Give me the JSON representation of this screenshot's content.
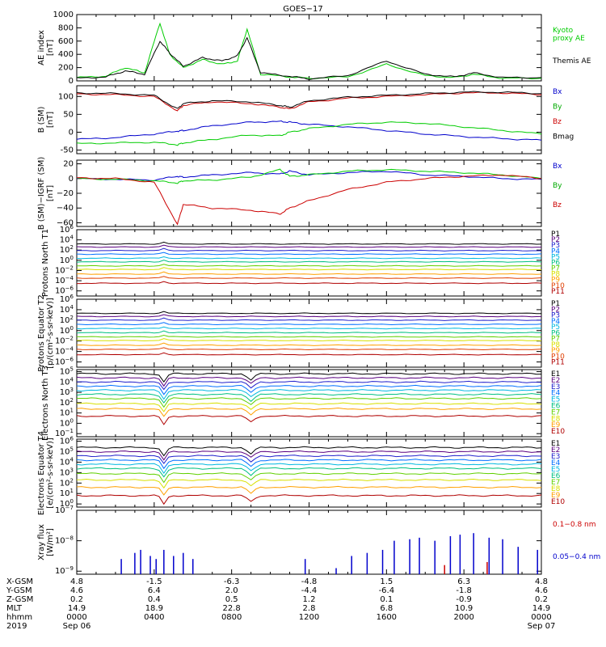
{
  "title": "GOES−17",
  "x_labels": [
    "0000",
    "0400",
    "0800",
    "1200",
    "1600",
    "2000",
    "0000"
  ],
  "date_labels": {
    "year": "2019",
    "start": "Sep 06",
    "end": "Sep 07"
  },
  "ephemeris": {
    "rows": [
      {
        "name": "X-GSM",
        "values": [
          "4.8",
          "-1.5",
          "-6.3",
          "-4.8",
          "1.5",
          "6.3",
          "4.8"
        ]
      },
      {
        "name": "Y-GSM",
        "values": [
          "4.6",
          "6.4",
          "2.0",
          "-4.4",
          "-6.4",
          "-1.8",
          "4.6"
        ]
      },
      {
        "name": "Z-GSM",
        "values": [
          "0.2",
          "0.4",
          "0.5",
          "1.2",
          "0.1",
          "-0.9",
          "0.2"
        ]
      },
      {
        "name": "MLT",
        "values": [
          "14.9",
          "18.9",
          "22.8",
          "2.8",
          "6.8",
          "10.9",
          "14.9"
        ]
      },
      {
        "name": "hhmm",
        "values": [
          "0000",
          "0400",
          "0800",
          "1200",
          "1600",
          "2000",
          "0000"
        ]
      }
    ]
  },
  "chart_data": [
    {
      "type": "line",
      "ylabel": "AE index [nT]",
      "yticks": [
        "1000",
        "800",
        "600",
        "400",
        "200",
        "0"
      ],
      "ylim": [
        0,
        1000
      ],
      "x": [
        0,
        1.5,
        2.5,
        3.5,
        4.3,
        4.8,
        5.5,
        6.5,
        7.5,
        8.3,
        8.8,
        9.5,
        11,
        12,
        14,
        16,
        18,
        19.5,
        20.5,
        22,
        24
      ],
      "series": [
        {
          "name": "Kyoto proxy AE",
          "color": "#00cc00",
          "values": [
            50,
            70,
            200,
            120,
            870,
            400,
            200,
            320,
            250,
            300,
            780,
            100,
            60,
            40,
            60,
            250,
            80,
            50,
            100,
            40,
            40
          ]
        },
        {
          "name": "Themis AE",
          "color": "#000000",
          "values": [
            40,
            60,
            150,
            100,
            600,
            420,
            220,
            350,
            300,
            380,
            650,
            120,
            70,
            30,
            80,
            300,
            100,
            60,
            120,
            50,
            50
          ]
        }
      ],
      "legend": [
        {
          "text": "Kyoto",
          "color": "#00cc00"
        },
        {
          "text": "proxy AE",
          "color": "#00cc00"
        },
        {
          "text": "Themis AE",
          "color": "#000000"
        }
      ]
    },
    {
      "type": "line",
      "ylabel": "B (SM) [nT]",
      "yticks": [
        "100",
        "50",
        "0",
        "-50"
      ],
      "ylim": [
        -60,
        130
      ],
      "x": [
        0,
        2,
        4,
        5.2,
        5.5,
        7,
        9,
        10.5,
        11,
        12,
        14,
        16,
        18,
        20,
        22,
        24
      ],
      "series": [
        {
          "name": "Bx",
          "color": "#0000cc",
          "values": [
            -20,
            -15,
            -5,
            3,
            5,
            18,
            28,
            30,
            28,
            22,
            15,
            5,
            -5,
            -12,
            -18,
            -22
          ]
        },
        {
          "name": "By",
          "color": "#00cc00",
          "values": [
            -32,
            -30,
            -28,
            -35,
            -30,
            -20,
            -8,
            -10,
            0,
            10,
            22,
            28,
            25,
            15,
            5,
            -5
          ]
        },
        {
          "name": "Bz",
          "color": "#cc0000",
          "values": [
            107,
            105,
            100,
            60,
            75,
            85,
            80,
            70,
            65,
            85,
            95,
            100,
            105,
            110,
            110,
            105
          ]
        },
        {
          "name": "Bmag",
          "color": "#000000",
          "values": [
            110,
            108,
            103,
            65,
            80,
            88,
            85,
            75,
            70,
            88,
            98,
            103,
            108,
            112,
            112,
            108
          ]
        }
      ],
      "legend": [
        {
          "text": "Bx",
          "color": "#0000cc"
        },
        {
          "text": "By",
          "color": "#00aa00"
        },
        {
          "text": "Bz",
          "color": "#cc0000"
        },
        {
          "text": "Bmag",
          "color": "#000000"
        }
      ]
    },
    {
      "type": "line",
      "ylabel": "B (SM)−IGRF (SM) [nT]",
      "yticks": [
        "20",
        "0",
        "−20",
        "−40",
        "−60"
      ],
      "ylim": [
        -65,
        25
      ],
      "x": [
        0,
        2,
        4,
        5.2,
        5.5,
        7,
        9,
        10.5,
        11,
        12,
        14,
        16,
        18,
        20,
        22,
        24
      ],
      "series": [
        {
          "name": "Bx",
          "color": "#0000cc",
          "values": [
            0,
            -1,
            -2,
            3,
            2,
            5,
            8,
            6,
            10,
            5,
            8,
            10,
            5,
            3,
            0,
            -1
          ]
        },
        {
          "name": "By",
          "color": "#00cc00",
          "values": [
            0,
            -1,
            -3,
            -6,
            -3,
            -2,
            2,
            12,
            3,
            5,
            10,
            12,
            10,
            8,
            5,
            0
          ]
        },
        {
          "name": "Bz",
          "color": "#cc0000",
          "values": [
            1,
            0,
            -5,
            -62,
            -35,
            -40,
            -43,
            -48,
            -40,
            -30,
            -15,
            -5,
            0,
            3,
            5,
            0
          ]
        }
      ],
      "legend": [
        {
          "text": "Bx",
          "color": "#0000cc"
        },
        {
          "text": "By",
          "color": "#00aa00"
        },
        {
          "text": "Bz",
          "color": "#cc0000"
        }
      ]
    },
    {
      "type": "line",
      "log": true,
      "ylabel": "Protons North T1",
      "ytick_exps": [
        6,
        4,
        2,
        0,
        -2,
        -4,
        -6
      ],
      "ylim": [
        -7,
        6
      ],
      "channels": [
        "P1",
        "P2",
        "P3",
        "P4",
        "P5",
        "P6",
        "P7",
        "P8",
        "P9",
        "P10",
        "P11"
      ],
      "colors": [
        "#000000",
        "#5a0080",
        "#2020cc",
        "#0070ff",
        "#00b8e0",
        "#00c080",
        "#60d000",
        "#d8e000",
        "#ffa000",
        "#e04000",
        "#b00000"
      ],
      "levels": [
        3.2,
        2.6,
        1.9,
        1.2,
        0.4,
        -0.3,
        -1.1,
        -1.8,
        -2.7,
        -3.5,
        -4.5
      ]
    },
    {
      "type": "line",
      "log": true,
      "ylabel": "Protons Equator T2 [p/(cm²-s-sr-keV)]",
      "ytick_exps": [
        6,
        4,
        2,
        0,
        -2,
        -4,
        -6
      ],
      "ylim": [
        -7,
        6
      ],
      "channels": [
        "P1",
        "P2",
        "P3",
        "P4",
        "P5",
        "P6",
        "P7",
        "P8",
        "P9",
        "P10",
        "P11"
      ],
      "colors": [
        "#000000",
        "#5a0080",
        "#2020cc",
        "#0070ff",
        "#00b8e0",
        "#00c080",
        "#60d000",
        "#d8e000",
        "#ffa000",
        "#e04000",
        "#b00000"
      ],
      "levels": [
        3.3,
        2.7,
        2.0,
        1.2,
        0.4,
        -0.4,
        -1.2,
        -1.9,
        -2.8,
        -3.6,
        -4.6
      ]
    },
    {
      "type": "line",
      "log": true,
      "ylabel": "Electrons North T3",
      "ytick_exps": [
        5,
        4,
        3,
        2,
        1,
        0,
        -1
      ],
      "ylim": [
        -1.3,
        5.2
      ],
      "channels": [
        "E1",
        "E2",
        "E3",
        "E4",
        "E5",
        "E6",
        "E7",
        "E8",
        "E9",
        "E10"
      ],
      "colors": [
        "#000000",
        "#5a0080",
        "#2020cc",
        "#0070ff",
        "#00b8e0",
        "#00c080",
        "#60d000",
        "#d8e000",
        "#ffa000",
        "#b00000"
      ],
      "levels": [
        4.8,
        4.4,
        4.0,
        3.6,
        3.2,
        2.8,
        2.4,
        1.9,
        1.4,
        0.7
      ]
    },
    {
      "type": "line",
      "log": true,
      "ylabel": "Electrons Equator T4 [e/(cm²-s-sr-keV)]",
      "ytick_exps": [
        6,
        5,
        4,
        3,
        2,
        1,
        0
      ],
      "ylim": [
        -0.3,
        6.2
      ],
      "channels": [
        "E1",
        "E2",
        "E3",
        "E4",
        "E5",
        "E6",
        "E7",
        "E8",
        "E9",
        "E10"
      ],
      "colors": [
        "#000000",
        "#5a0080",
        "#2020cc",
        "#0070ff",
        "#00b8e0",
        "#00c080",
        "#60d000",
        "#d8e000",
        "#ffa000",
        "#b00000"
      ],
      "levels": [
        5.4,
        5.0,
        4.6,
        4.2,
        3.8,
        3.4,
        2.9,
        2.3,
        1.6,
        0.8
      ]
    },
    {
      "type": "bar",
      "log": true,
      "ylabel": "Xray flux [W/m²]",
      "ytick_exps": [
        -7,
        -8,
        -9
      ],
      "ylim": [
        -9.1,
        -7
      ],
      "legend": [
        {
          "text": "0.1−0.8 nm",
          "color": "#cc0000"
        },
        {
          "text": "0.05−0.4 nm",
          "color": "#0000cc"
        }
      ],
      "series": [
        {
          "name": "0.05−0.4 nm",
          "color": "#0000cc",
          "x": [
            2.3,
            3.0,
            3.3,
            3.8,
            4.1,
            4.5,
            5.0,
            5.5,
            6.0,
            11.8,
            13.4,
            14.2,
            15.0,
            15.8,
            16.4,
            17.2,
            17.7,
            18.5,
            19.3,
            19.8,
            20.5,
            21.3,
            22.0,
            22.8,
            23.8
          ],
          "values": [
            -8.6,
            -8.4,
            -8.3,
            -8.5,
            -8.6,
            -8.3,
            -8.5,
            -8.4,
            -8.6,
            -8.6,
            -8.9,
            -8.5,
            -8.4,
            -8.3,
            -8.0,
            -7.95,
            -7.9,
            -8.0,
            -7.85,
            -7.8,
            -7.75,
            -7.9,
            -7.95,
            -8.2,
            -8.3
          ]
        },
        {
          "name": "0.1−0.8 nm",
          "color": "#cc0000",
          "x": [
            19.0,
            21.2
          ],
          "values": [
            -8.8,
            -8.7
          ]
        }
      ]
    }
  ]
}
